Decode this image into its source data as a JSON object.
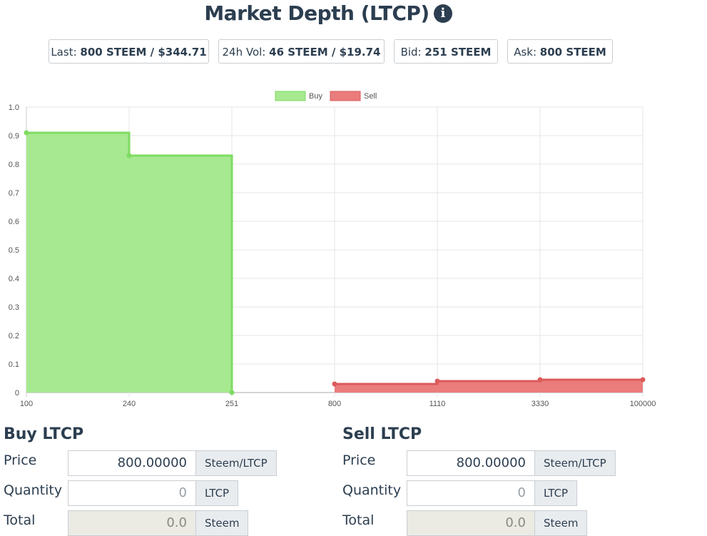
{
  "header": {
    "title": "Market Depth (LTCP)",
    "info_icon": "info-icon"
  },
  "stats": [
    {
      "label": "Last:",
      "value": "800 STEEM / $344.71"
    },
    {
      "label": "24h Vol:",
      "value": "46 STEEM / $19.74"
    },
    {
      "label": "Bid:",
      "value": "251 STEEM"
    },
    {
      "label": "Ask:",
      "value": "800 STEEM"
    }
  ],
  "chart_data": {
    "type": "area",
    "title": "",
    "categories": [
      "100",
      "240",
      "251",
      "800",
      "1110",
      "3330",
      "100000"
    ],
    "ylim": [
      0,
      1.0
    ],
    "yticks": [
      "0",
      "0.1",
      "0.2",
      "0.3",
      "0.4",
      "0.5",
      "0.6",
      "0.7",
      "0.8",
      "0.9",
      "1.0"
    ],
    "legend_position": "top-center",
    "colors": {
      "buy_fill": "#a6e990",
      "buy_line": "#7edb62",
      "sell_fill": "#ea7c7c",
      "sell_line": "#dc5a5a"
    },
    "series": [
      {
        "name": "Buy",
        "points": [
          [
            0,
            0.91
          ],
          [
            1,
            0.83
          ],
          [
            2,
            0.0
          ]
        ]
      },
      {
        "name": "Sell",
        "points": [
          [
            3,
            0.03
          ],
          [
            4,
            0.04
          ],
          [
            5,
            0.045
          ],
          [
            6,
            0.045
          ]
        ]
      }
    ]
  },
  "buy": {
    "heading": "Buy LTCP",
    "price_label": "Price",
    "price_value": "800.00000",
    "price_unit": "Steem/LTCP",
    "quantity_label": "Quantity",
    "quantity_value": "0",
    "quantity_unit": "LTCP",
    "total_label": "Total",
    "total_value": "0.0",
    "total_unit": "Steem"
  },
  "sell": {
    "heading": "Sell LTCP",
    "price_label": "Price",
    "price_value": "800.00000",
    "price_unit": "Steem/LTCP",
    "quantity_label": "Quantity",
    "quantity_value": "0",
    "quantity_unit": "LTCP",
    "total_label": "Total",
    "total_value": "0.0",
    "total_unit": "Steem"
  }
}
